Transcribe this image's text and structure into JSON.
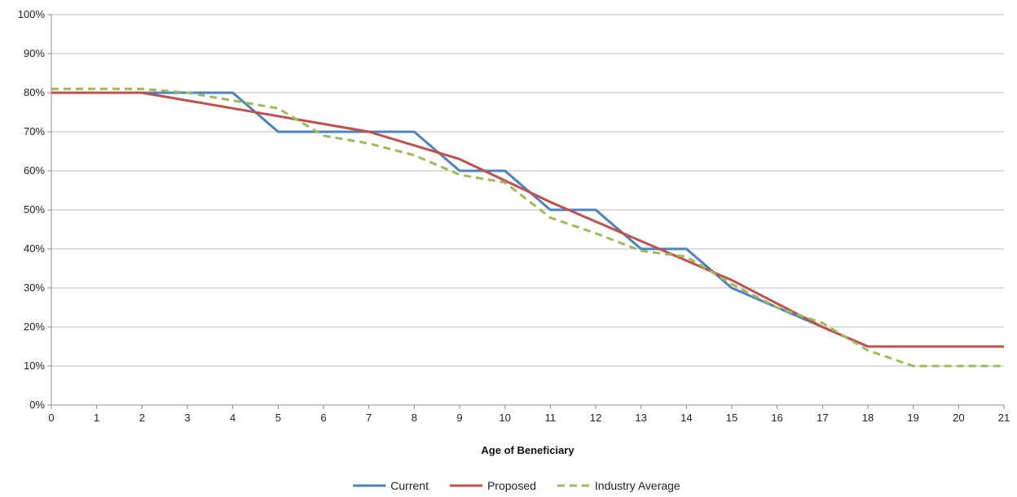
{
  "chart_data": {
    "type": "line",
    "title": "",
    "xlabel": "Age of Beneficiary",
    "ylabel": "",
    "x": [
      0,
      1,
      2,
      3,
      4,
      5,
      6,
      7,
      8,
      9,
      10,
      11,
      12,
      13,
      14,
      15,
      16,
      17,
      18,
      19,
      20,
      21
    ],
    "xlim": [
      0,
      21
    ],
    "ylim": [
      0,
      100
    ],
    "y_ticks": [
      0,
      10,
      20,
      30,
      40,
      50,
      60,
      70,
      80,
      90,
      100
    ],
    "y_tick_labels": [
      "0%",
      "10%",
      "20%",
      "30%",
      "40%",
      "50%",
      "60%",
      "70%",
      "80%",
      "90%",
      "100%"
    ],
    "x_tick_labels": [
      "0",
      "1",
      "2",
      "3",
      "4",
      "5",
      "6",
      "7",
      "8",
      "9",
      "10",
      "11",
      "12",
      "13",
      "14",
      "15",
      "16",
      "17",
      "18",
      "19",
      "20",
      "21"
    ],
    "grid": "horizontal",
    "legend_position": "bottom",
    "series": [
      {
        "name": "Current",
        "color": "#4f81bd",
        "style": "solid",
        "points": [
          [
            0,
            80
          ],
          [
            1,
            80
          ],
          [
            2,
            80
          ],
          [
            3,
            80
          ],
          [
            4,
            80
          ],
          [
            5,
            70
          ],
          [
            6,
            70
          ],
          [
            7,
            70
          ],
          [
            8,
            70
          ],
          [
            9,
            60
          ],
          [
            10,
            60
          ],
          [
            11,
            50
          ],
          [
            12,
            50
          ],
          [
            13,
            40
          ],
          [
            14,
            40
          ],
          [
            15,
            30
          ],
          [
            16,
            25
          ],
          [
            17,
            20
          ],
          [
            18,
            15
          ],
          [
            19,
            15
          ],
          [
            20,
            15
          ],
          [
            21,
            15
          ]
        ]
      },
      {
        "name": "Proposed",
        "color": "#c0504d",
        "style": "solid",
        "points": [
          [
            0,
            80
          ],
          [
            1,
            80
          ],
          [
            2,
            80
          ],
          [
            3,
            78
          ],
          [
            4,
            76
          ],
          [
            5,
            74
          ],
          [
            6,
            72
          ],
          [
            7,
            70
          ],
          [
            8,
            66.5
          ],
          [
            9,
            63
          ],
          [
            10,
            57.5
          ],
          [
            11,
            52
          ],
          [
            12,
            47
          ],
          [
            13,
            42
          ],
          [
            14,
            37
          ],
          [
            15,
            32
          ],
          [
            16,
            26
          ],
          [
            17,
            20
          ],
          [
            18,
            15
          ],
          [
            19,
            15
          ],
          [
            20,
            15
          ],
          [
            21,
            15
          ]
        ]
      },
      {
        "name": "Industry Average",
        "color": "#9bbb59",
        "style": "dashed",
        "points": [
          [
            0,
            81
          ],
          [
            1,
            81
          ],
          [
            2,
            81
          ],
          [
            3,
            80
          ],
          [
            4,
            78
          ],
          [
            5,
            76
          ],
          [
            6,
            69
          ],
          [
            7,
            67
          ],
          [
            8,
            64
          ],
          [
            9,
            59
          ],
          [
            10,
            57
          ],
          [
            11,
            48
          ],
          [
            12,
            44
          ],
          [
            13,
            39.5
          ],
          [
            14,
            38
          ],
          [
            15,
            31
          ],
          [
            16,
            25
          ],
          [
            17,
            21
          ],
          [
            18,
            14
          ],
          [
            19,
            10
          ],
          [
            20,
            10
          ],
          [
            21,
            10
          ]
        ]
      }
    ]
  }
}
